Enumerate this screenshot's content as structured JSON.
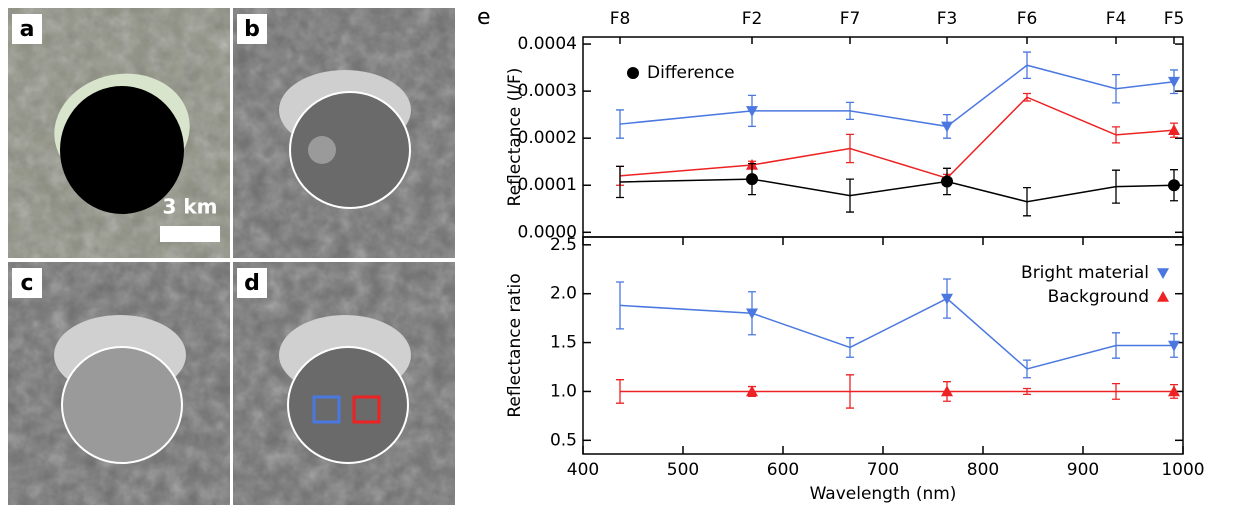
{
  "panels": {
    "labels": [
      "a",
      "b",
      "c",
      "d"
    ],
    "scale_bar": "3 km"
  },
  "figure_label": "e",
  "chart_data": [
    {
      "type": "line",
      "y_label": "Reflectance (I/F)",
      "x": [
        437,
        569,
        667,
        764,
        844,
        933,
        991
      ],
      "xlim": [
        400,
        1000
      ],
      "top_axis_labels": [
        "F8",
        "F2",
        "F7",
        "F3",
        "F6",
        "F4",
        "F5"
      ],
      "ylim": [
        -1e-05,
        0.000415
      ],
      "yticks": [
        {
          "value": 0,
          "label": "0.0000"
        },
        {
          "value": 0.0001,
          "label": "0.0001"
        },
        {
          "value": 0.0002,
          "label": "0.0002"
        },
        {
          "value": 0.0003,
          "label": "0.0003"
        },
        {
          "value": 0.0004,
          "label": "0.0004"
        }
      ],
      "legend": "upper left",
      "series": [
        {
          "color": "#4a78e0",
          "marker": "triangle-down",
          "marker_indices": [
            1,
            3,
            6
          ],
          "values": [
            0.00023,
            0.000258,
            0.000258,
            0.000225,
            0.000355,
            0.000305,
            0.00032
          ],
          "errors": [
            3e-05,
            3.3e-05,
            1.8e-05,
            2.5e-05,
            2.8e-05,
            3e-05,
            2.5e-05
          ]
        },
        {
          "color": "#ee2222",
          "marker": "triangle-up",
          "marker_indices": [
            1,
            3,
            6
          ],
          "values": [
            0.00012,
            0.000143,
            0.000178,
            0.000115,
            0.000287,
            0.000207,
            0.000217
          ],
          "errors": [
            2e-05,
            8e-06,
            3e-05,
            8e-06,
            8e-06,
            1.7e-05,
            1.5e-05
          ]
        },
        {
          "name": "Difference",
          "color": "#000000",
          "marker": "circle",
          "marker_indices": [
            1,
            3,
            6
          ],
          "values": [
            0.000107,
            0.000113,
            7.8e-05,
            0.000108,
            6.5e-05,
            9.7e-05,
            0.0001
          ],
          "errors": [
            3.3e-05,
            3.3e-05,
            3.5e-05,
            2.8e-05,
            3e-05,
            3.5e-05,
            3.3e-05
          ]
        }
      ]
    },
    {
      "type": "line",
      "y_label": "Reflectance ratio",
      "x_label": "Wavelength (nm)",
      "x": [
        437,
        569,
        667,
        764,
        844,
        933,
        991
      ],
      "xlim": [
        400,
        1000
      ],
      "xticks": [
        400,
        500,
        600,
        700,
        800,
        900,
        1000
      ],
      "ylim": [
        0.36,
        2.58
      ],
      "yticks": [
        0.5,
        {
          "value": 1,
          "label": "1.0"
        },
        1.5,
        {
          "value": 2,
          "label": "2.0"
        },
        2.5
      ],
      "legend": "upper right",
      "series": [
        {
          "name": "Bright material",
          "color": "#4a78e0",
          "marker": "triangle-down",
          "marker_indices": [
            1,
            3,
            6
          ],
          "values": [
            1.88,
            1.8,
            1.45,
            1.95,
            1.23,
            1.47,
            1.47
          ],
          "errors": [
            0.24,
            0.22,
            0.1,
            0.2,
            0.09,
            0.13,
            0.12
          ]
        },
        {
          "name": "Background",
          "color": "#ee2222",
          "marker": "triangle-up",
          "marker_indices": [
            1,
            3,
            6
          ],
          "values": [
            1,
            1,
            1,
            1,
            1,
            1,
            1
          ],
          "errors": [
            0.12,
            0.05,
            0.17,
            0.1,
            0.03,
            0.08,
            0.07
          ]
        }
      ]
    }
  ]
}
